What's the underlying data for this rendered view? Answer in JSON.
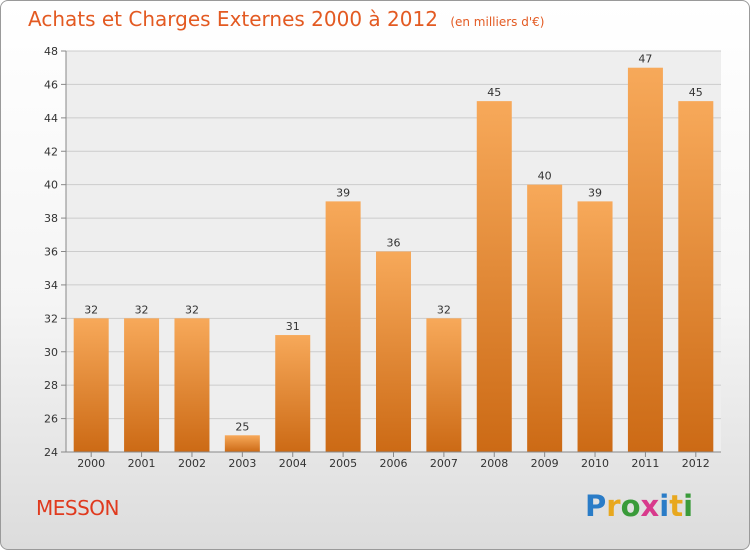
{
  "title": "Achats et Charges Externes 2000 à 2012",
  "unit": "(en milliers d'€)",
  "place": "MESSON",
  "logo": [
    "P",
    "r",
    "o",
    "x",
    "i",
    "t",
    "i"
  ],
  "logo_colors": [
    "#2a7cc7",
    "#e8a81f",
    "#3a9b3a",
    "#d83a8c",
    "#2a7cc7",
    "#e8a81f",
    "#3a9b3a"
  ],
  "colors": {
    "bar_top": "#f7a95a",
    "bar_bottom": "#cc6a15",
    "title": "#e35a22",
    "grid": "#cccccc",
    "plot_bg": "#eeeeee"
  },
  "chart_data": {
    "type": "bar",
    "title": "Achats et Charges Externes 2000 à 2012",
    "categories": [
      "2000",
      "2001",
      "2002",
      "2003",
      "2004",
      "2005",
      "2006",
      "2007",
      "2008",
      "2009",
      "2010",
      "2011",
      "2012"
    ],
    "values": [
      32,
      32,
      32,
      25,
      31,
      39,
      36,
      32,
      45,
      40,
      39,
      47,
      45
    ],
    "ylim": [
      24,
      48
    ],
    "yticks": [
      24,
      26,
      28,
      30,
      32,
      34,
      36,
      38,
      40,
      42,
      44,
      46,
      48
    ],
    "grid": true,
    "xlabel": "",
    "ylabel": ""
  }
}
